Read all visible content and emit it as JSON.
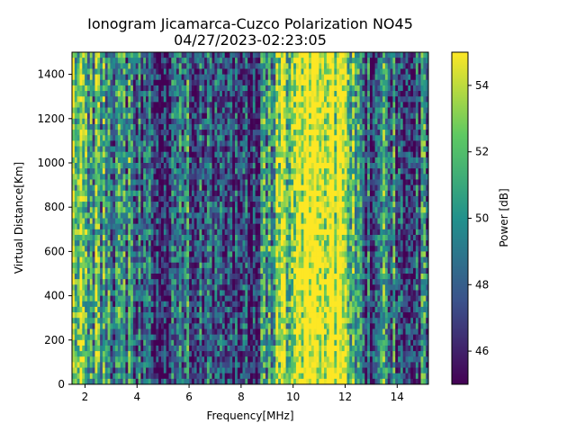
{
  "chart_data": {
    "type": "heatmap",
    "title_line1": "Ionogram Jicamarca-Cuzco Polarization NO45",
    "title_line2": "04/27/2023-02:23:05",
    "xlabel": "Frequency[MHz]",
    "ylabel": "Virtual Distance[Km]",
    "colorbar_label": "Power [dB]",
    "colormap": "viridis",
    "colormap_stops": [
      "#440154",
      "#3b528b",
      "#21918c",
      "#5ec962",
      "#fde725"
    ],
    "xlim": [
      1.5,
      15.2
    ],
    "ylim": [
      0,
      1500
    ],
    "clim": [
      45,
      55
    ],
    "x_ticks": [
      2,
      4,
      6,
      8,
      10,
      12,
      14
    ],
    "y_ticks": [
      0,
      200,
      400,
      600,
      800,
      1000,
      1200,
      1400
    ],
    "colorbar_ticks": [
      46,
      48,
      50,
      52,
      54
    ],
    "power_profile": {
      "description_units": "dB, typical column power vs frequency",
      "frequency_mhz": [
        1.5,
        2.0,
        2.5,
        3.0,
        3.5,
        4.0,
        4.5,
        5.0,
        5.5,
        6.0,
        6.5,
        7.0,
        7.5,
        8.0,
        8.5,
        9.0,
        9.5,
        10.0,
        10.5,
        11.0,
        11.5,
        12.0,
        12.5,
        13.0,
        13.5,
        14.0,
        14.5,
        15.0
      ],
      "power_db": [
        53.5,
        52.0,
        51.0,
        50.0,
        49.5,
        48.5,
        48.0,
        46.5,
        47.0,
        49.0,
        47.5,
        48.0,
        47.0,
        48.5,
        46.5,
        50.0,
        53.0,
        54.0,
        55.0,
        55.0,
        55.0,
        54.0,
        50.0,
        47.0,
        51.0,
        48.0,
        47.0,
        49.0
      ]
    }
  }
}
